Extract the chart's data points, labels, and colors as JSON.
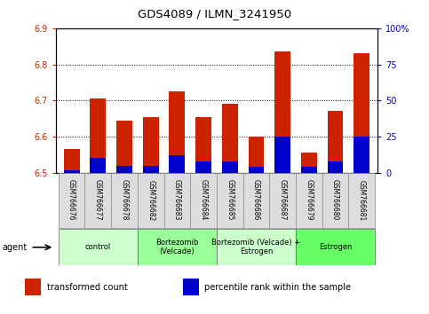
{
  "title": "GDS4089 / ILMN_3241950",
  "samples": [
    "GSM766676",
    "GSM766677",
    "GSM766678",
    "GSM766682",
    "GSM766683",
    "GSM766684",
    "GSM766685",
    "GSM766686",
    "GSM766687",
    "GSM766679",
    "GSM766680",
    "GSM766681"
  ],
  "transformed_count": [
    6.565,
    6.705,
    6.645,
    6.655,
    6.725,
    6.655,
    6.69,
    6.6,
    6.835,
    6.555,
    6.67,
    6.83
  ],
  "percentile_rank": [
    1.5,
    10.0,
    5.0,
    5.0,
    12.0,
    8.0,
    8.0,
    4.0,
    25.0,
    4.0,
    8.0,
    25.0
  ],
  "ylim_left": [
    6.5,
    6.9
  ],
  "ylim_right": [
    0,
    100
  ],
  "yticks_left": [
    6.5,
    6.6,
    6.7,
    6.8,
    6.9
  ],
  "yticks_right": [
    0,
    25,
    50,
    75,
    100
  ],
  "ytick_labels_right": [
    "0",
    "25",
    "50",
    "75",
    "100%"
  ],
  "groups": [
    {
      "label": "control",
      "start": 0,
      "end": 3,
      "color": "#ccffcc"
    },
    {
      "label": "Bortezomib\n(Velcade)",
      "start": 3,
      "end": 6,
      "color": "#99ff99"
    },
    {
      "label": "Bortezomib (Velcade) +\nEstrogen",
      "start": 6,
      "end": 9,
      "color": "#ccffcc"
    },
    {
      "label": "Estrogen",
      "start": 9,
      "end": 12,
      "color": "#66ff66"
    }
  ],
  "bar_color": "#cc2200",
  "percentile_color": "#0000cc",
  "base_value": 6.5,
  "legend_items": [
    {
      "color": "#cc2200",
      "label": "transformed count"
    },
    {
      "color": "#0000cc",
      "label": "percentile rank within the sample"
    }
  ],
  "agent_label": "agent",
  "left_tick_color": "#cc2200",
  "right_tick_color": "#0000cc",
  "grid_lines": [
    6.6,
    6.7,
    6.8
  ]
}
